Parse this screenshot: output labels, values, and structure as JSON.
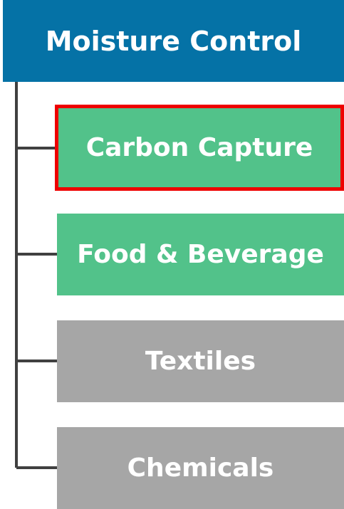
{
  "header": {
    "title": "Moisture Control"
  },
  "items": [
    {
      "label": "Carbon Capture",
      "color": "#52c28a",
      "selected": true
    },
    {
      "label": "Food & Beverage",
      "color": "#52c28a",
      "selected": false
    },
    {
      "label": "Textiles",
      "color": "#a6a6a6",
      "selected": false
    },
    {
      "label": "Chemicals",
      "color": "#a6a6a6",
      "selected": false
    }
  ]
}
